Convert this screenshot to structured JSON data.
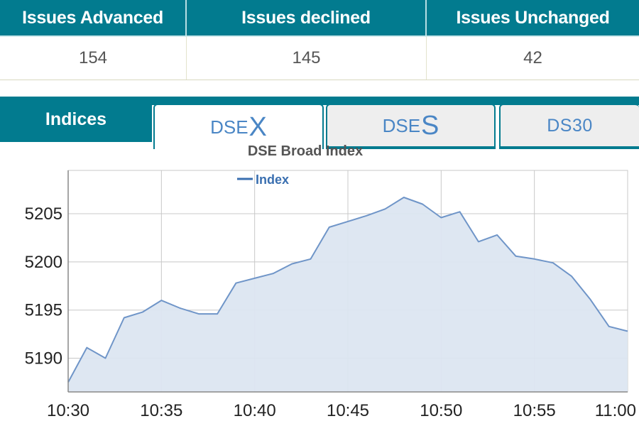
{
  "stats": {
    "headers": [
      "Issues Advanced",
      "Issues declined",
      "Issues Unchanged"
    ],
    "values": [
      "154",
      "145",
      "42"
    ]
  },
  "tabs": {
    "section_label": "Indices",
    "items": [
      {
        "prefix": "DSE",
        "suffix": "X"
      },
      {
        "prefix": "DSE",
        "suffix": "S"
      },
      {
        "prefix": "DS30",
        "suffix": ""
      }
    ]
  },
  "colors": {
    "teal": "#027b8f",
    "line": "#6f95c8",
    "fill": "#dce6f1"
  },
  "chart_data": {
    "type": "area",
    "title": "DSE Broad Index",
    "legend": [
      "Index"
    ],
    "legend_position": "top",
    "grid": true,
    "xlim": [
      630,
      660
    ],
    "ylim": [
      5186.5,
      5209.5
    ],
    "x_ticks": [
      630,
      635,
      640,
      645,
      650,
      655,
      660
    ],
    "x_tick_labels": [
      "10:30",
      "10:35",
      "10:40",
      "10:45",
      "10:50",
      "10:55",
      "11:00"
    ],
    "y_ticks": [
      5190,
      5195,
      5200,
      5205
    ],
    "y_tick_labels": [
      "5190",
      "5195",
      "5200",
      "5205"
    ],
    "series": [
      {
        "name": "Index",
        "x": [
          630,
          631,
          632,
          633,
          634,
          635,
          636,
          637,
          638,
          639,
          640,
          641,
          642,
          643,
          644,
          645,
          646,
          647,
          648,
          649,
          650,
          651,
          652,
          653,
          654,
          655,
          656,
          657,
          658,
          659,
          660
        ],
        "y": [
          5187.5,
          5191.1,
          5190.0,
          5194.2,
          5194.8,
          5196.0,
          5195.2,
          5194.6,
          5194.6,
          5197.8,
          5198.3,
          5198.8,
          5199.8,
          5200.3,
          5203.6,
          5204.2,
          5204.8,
          5205.5,
          5206.7,
          5206.0,
          5204.6,
          5205.2,
          5202.1,
          5202.8,
          5200.6,
          5200.3,
          5199.9,
          5198.5,
          5196.1,
          5193.3,
          5192.8
        ]
      }
    ]
  }
}
